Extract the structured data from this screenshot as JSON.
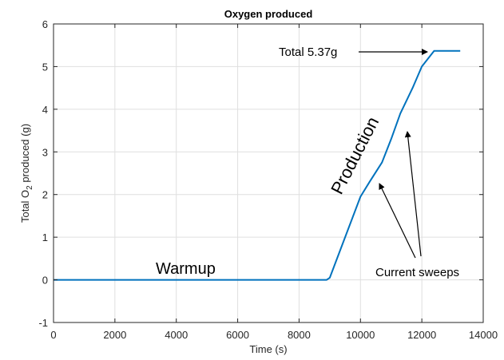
{
  "chart_data": {
    "type": "line",
    "title": "Oxygen produced",
    "xlabel": "Time (s)",
    "ylabel": {
      "prefix": "Total O",
      "subscript": "2",
      "suffix": " produced (g)"
    },
    "xlim": [
      0,
      14000
    ],
    "ylim": [
      -1,
      6
    ],
    "xticks": [
      0,
      2000,
      4000,
      6000,
      8000,
      10000,
      12000,
      14000
    ],
    "yticks": [
      -1,
      0,
      1,
      2,
      3,
      4,
      5,
      6
    ],
    "grid": true,
    "series": [
      {
        "color": "#0072BD",
        "x": [
          0,
          8900,
          9000,
          9500,
          10000,
          10300,
          10700,
          11000,
          11300,
          11700,
          12000,
          12400,
          13250
        ],
        "y": [
          0,
          0,
          0.05,
          1.0,
          1.95,
          2.3,
          2.75,
          3.3,
          3.9,
          4.5,
          5.0,
          5.37,
          5.37
        ]
      }
    ],
    "annotations": [
      {
        "id": "total",
        "text": "Total 5.37g"
      },
      {
        "id": "production",
        "text": "Production"
      },
      {
        "id": "warmup",
        "text": "Warmup"
      },
      {
        "id": "sweeps",
        "text": "Current sweeps"
      }
    ]
  }
}
